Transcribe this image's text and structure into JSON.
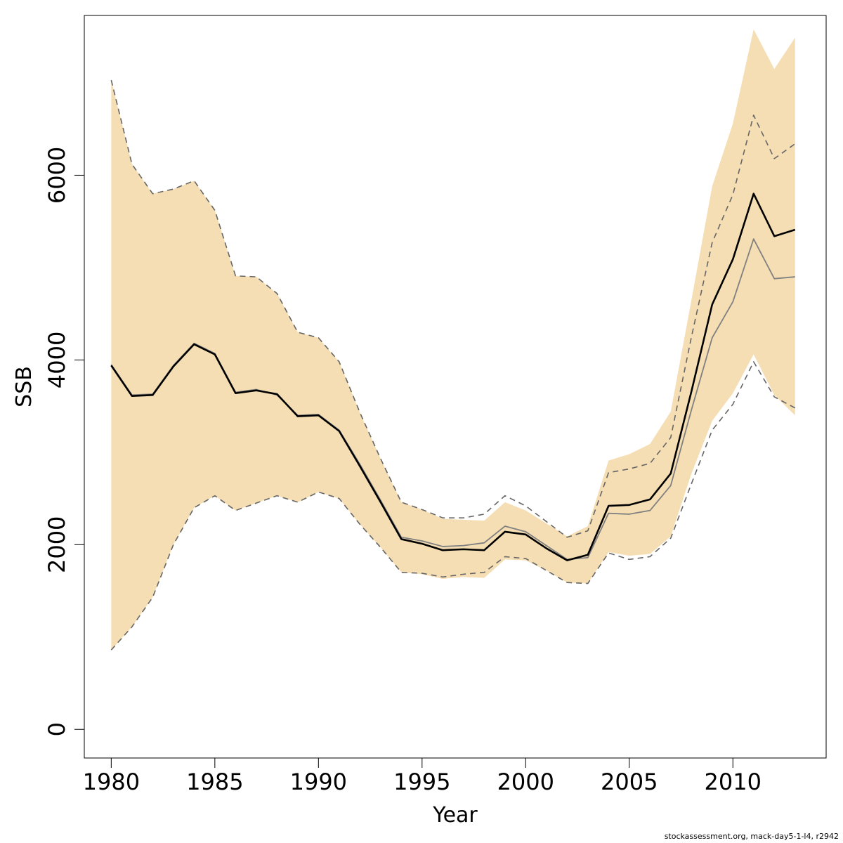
{
  "chart_data": {
    "type": "line",
    "xlabel": "Year",
    "ylabel": "SSB",
    "xlim": [
      1978.7,
      2014.5
    ],
    "ylim": [
      -310,
      7730
    ],
    "x_ticks": [
      1980,
      1985,
      1990,
      1995,
      2000,
      2005,
      2010
    ],
    "y_ticks": [
      0,
      2000,
      4000,
      6000
    ],
    "colors": {
      "band": "#F5DEB3",
      "main": "#000000",
      "secondary": "#808080",
      "dashed": "#666666",
      "frame": "#000000"
    },
    "x": [
      1980,
      1981,
      1982,
      1983,
      1984,
      1985,
      1986,
      1987,
      1988,
      1989,
      1990,
      1991,
      1992,
      1993,
      1994,
      1995,
      1996,
      1997,
      1998,
      1999,
      2000,
      2001,
      2002,
      2003,
      2004,
      2005,
      2006,
      2007,
      2008,
      2009,
      2010,
      2011,
      2012,
      2013
    ],
    "band_upper": [
      7030,
      6120,
      5800,
      5850,
      5940,
      5620,
      4910,
      4900,
      4720,
      4300,
      4240,
      3980,
      3430,
      2930,
      2460,
      2380,
      2280,
      2270,
      2260,
      2460,
      2370,
      2230,
      2090,
      2200,
      2910,
      2980,
      3090,
      3440,
      4650,
      5880,
      6560,
      7580,
      7150,
      7490
    ],
    "band_lower": [
      860,
      1110,
      1430,
      2000,
      2400,
      2530,
      2370,
      2450,
      2530,
      2460,
      2570,
      2500,
      2220,
      1970,
      1700,
      1680,
      1630,
      1650,
      1640,
      1840,
      1830,
      1720,
      1590,
      1580,
      1920,
      1880,
      1900,
      2090,
      2770,
      3340,
      3640,
      4060,
      3620,
      3400
    ],
    "series": [
      {
        "values": [
          3940,
          3610,
          3620,
          3930,
          4170,
          4060,
          3640,
          3670,
          3630,
          3390,
          3400,
          3230,
          2850,
          2460,
          2060,
          2010,
          1940,
          1950,
          1940,
          2140,
          2110,
          1960,
          1830,
          1890,
          2420,
          2430,
          2490,
          2770,
          3660,
          4600,
          5090,
          5800,
          5340,
          5410
        ]
      },
      {
        "values": [
          3950,
          3620,
          3630,
          3940,
          4180,
          4070,
          3650,
          3680,
          3620,
          3400,
          3410,
          3240,
          2870,
          2480,
          2080,
          2040,
          1980,
          1990,
          2020,
          2200,
          2140,
          1990,
          1840,
          1860,
          2340,
          2330,
          2370,
          2640,
          3460,
          4240,
          4630,
          5310,
          4880,
          4900
        ]
      },
      {
        "values": [
          7030,
          6120,
          5800,
          5850,
          5940,
          5620,
          4910,
          4900,
          4720,
          4300,
          4240,
          3980,
          3430,
          2930,
          2460,
          2380,
          2290,
          2290,
          2330,
          2530,
          2420,
          2250,
          2080,
          2150,
          2780,
          2820,
          2880,
          3160,
          4250,
          5270,
          5790,
          6650,
          6180,
          6340
        ]
      },
      {
        "values": [
          860,
          1110,
          1430,
          2000,
          2400,
          2530,
          2370,
          2450,
          2530,
          2460,
          2570,
          2500,
          2220,
          1970,
          1700,
          1690,
          1650,
          1680,
          1700,
          1870,
          1850,
          1720,
          1590,
          1580,
          1910,
          1840,
          1870,
          2070,
          2660,
          3240,
          3520,
          3980,
          3600,
          3480
        ]
      }
    ]
  },
  "footer": {
    "credit": "stockassessment.org, mack-day5-1-l4, r2942"
  }
}
